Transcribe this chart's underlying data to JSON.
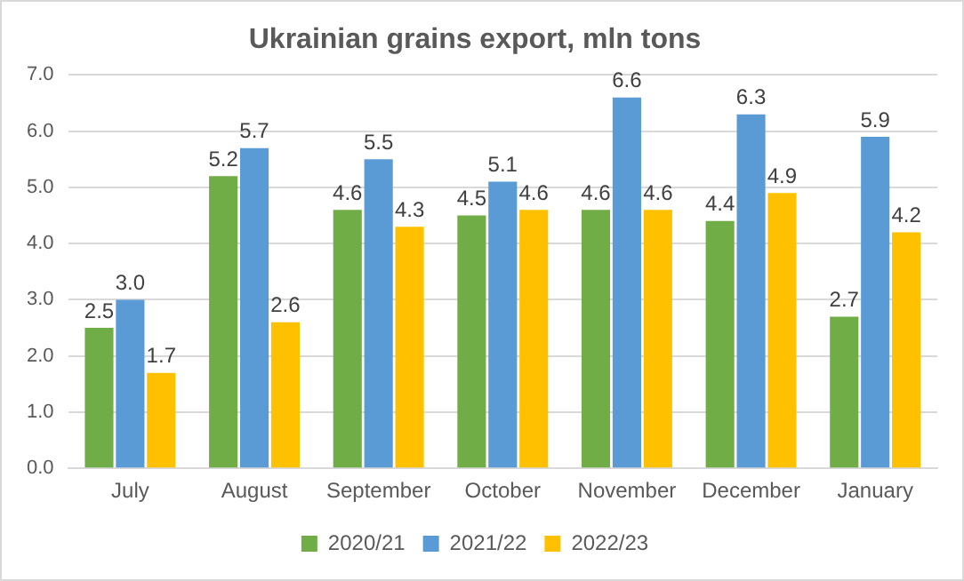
{
  "chart_data": {
    "type": "bar",
    "title": "Ukrainian grains export, mln tons",
    "categories": [
      "July",
      "August",
      "September",
      "October",
      "November",
      "December",
      "January"
    ],
    "series": [
      {
        "name": "2020/21",
        "color": "#70ad47",
        "values": [
          2.5,
          5.2,
          4.6,
          4.5,
          4.6,
          4.4,
          2.7
        ],
        "value_labels": [
          "2.5",
          "5.2",
          "4.6",
          "4.5",
          "4.6",
          "4.4",
          "2.7"
        ]
      },
      {
        "name": "2021/22",
        "color": "#5b9bd5",
        "values": [
          3.0,
          5.7,
          5.5,
          5.1,
          6.6,
          6.3,
          5.9
        ],
        "value_labels": [
          "3.0",
          "5.7",
          "5.5",
          "5.1",
          "6.6",
          "6.3",
          "5.9"
        ]
      },
      {
        "name": "2022/23",
        "color": "#ffc000",
        "values": [
          1.7,
          2.6,
          4.3,
          4.6,
          4.6,
          4.9,
          4.2
        ],
        "value_labels": [
          "1.7",
          "2.6",
          "4.3",
          "4.6",
          "4.6",
          "4.9",
          "4.2"
        ]
      }
    ],
    "ylim": [
      0,
      7
    ],
    "yticks": [
      {
        "value": 0,
        "label": "0.0"
      },
      {
        "value": 1,
        "label": "1.0"
      },
      {
        "value": 2,
        "label": "2.0"
      },
      {
        "value": 3,
        "label": "3.0"
      },
      {
        "value": 4,
        "label": "4.0"
      },
      {
        "value": 5,
        "label": "5.0"
      },
      {
        "value": 6,
        "label": "6.0"
      },
      {
        "value": 7,
        "label": "7.0"
      }
    ],
    "grid": "y",
    "legend": "bottom"
  }
}
